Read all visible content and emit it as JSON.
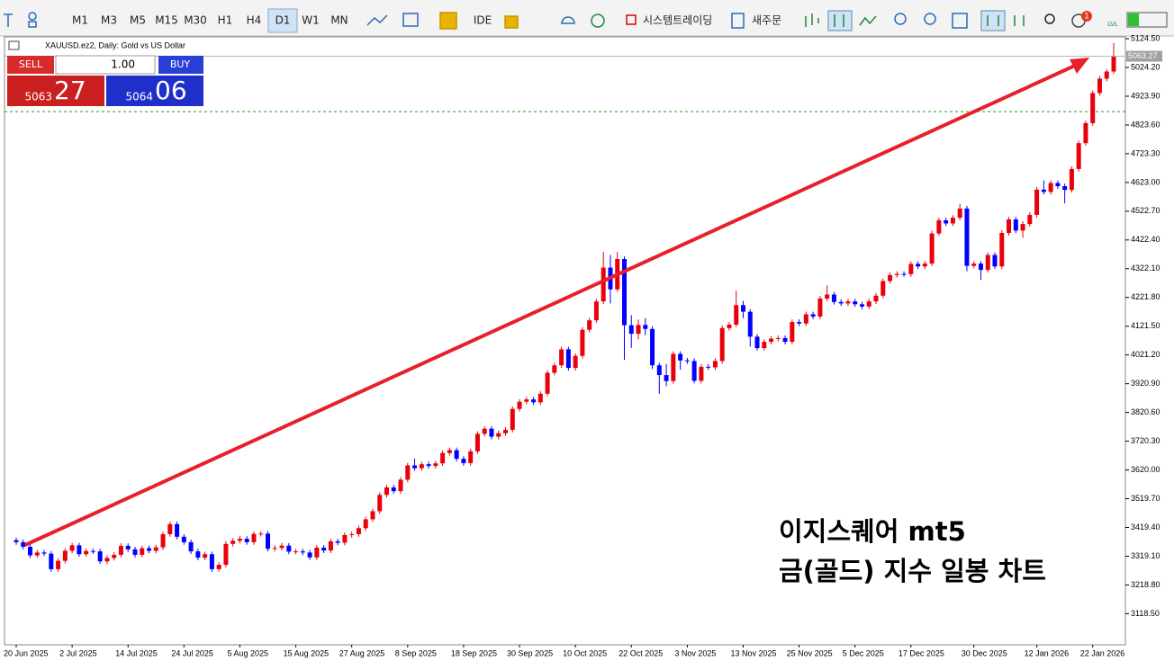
{
  "toolbar": {
    "timeframes": [
      "M1",
      "M3",
      "M5",
      "M15",
      "M30",
      "H1",
      "H4",
      "D1",
      "W1",
      "MN"
    ],
    "ide": "IDE",
    "algo": "시스템트레이딩",
    "new_order": "새주문",
    "badge": "1",
    "lvl": "LVL"
  },
  "trade_panel": {
    "sell": "SELL",
    "buy": "BUY",
    "lot": "1.00",
    "sell_big": "5063",
    "sell_small": "27",
    "buy_big": "5064",
    "buy_small": "06"
  },
  "annotation": [
    "이지스퀘어 mt5",
    "금(골드) 지수 일봉 차트"
  ],
  "chart_data": {
    "type": "candlestick",
    "title": "XAUUSD.ez2, Daily: Gold vs US Dollar",
    "up_color": "#e8000b",
    "down_color": "#0000ff",
    "categories": [
      "20 Jun 2025",
      null,
      null,
      null,
      null,
      null,
      null,
      null,
      "2 Jul 2025",
      null,
      null,
      null,
      null,
      null,
      null,
      null,
      "14 Jul 2025",
      null,
      null,
      null,
      null,
      null,
      null,
      null,
      "24 Jul 2025",
      null,
      null,
      null,
      null,
      null,
      null,
      null,
      "5 Aug 2025",
      null,
      null,
      null,
      null,
      null,
      null,
      null,
      "15 Aug 2025",
      null,
      null,
      null,
      null,
      null,
      null,
      null,
      "27 Aug 2025",
      null,
      null,
      null,
      null,
      null,
      null,
      null,
      "8 Sep 2025",
      null,
      null,
      null,
      null,
      null,
      null,
      null,
      "18 Sep 2025",
      null,
      null,
      null,
      null,
      null,
      null,
      null,
      "30 Sep 2025",
      null,
      null,
      null,
      null,
      null,
      null,
      null,
      "10 Oct 2025",
      null,
      null,
      null,
      null,
      null,
      null,
      null,
      "22 Oct 2025",
      null,
      null,
      null,
      null,
      null,
      null,
      null,
      "3 Nov 2025",
      null,
      null,
      null,
      null,
      null,
      null,
      null,
      "13 Nov 2025",
      null,
      null,
      null,
      null,
      null,
      null,
      null,
      "25 Nov 2025",
      null,
      null,
      null,
      null,
      null,
      null,
      null,
      "5 Dec 2025",
      null,
      null,
      null,
      null,
      null,
      null,
      null,
      "17 Dec 2025",
      null,
      null,
      null,
      null,
      null,
      null,
      null,
      null,
      "30 Dec 2025",
      null,
      null,
      null,
      null,
      null,
      null,
      null,
      null,
      "12 Jan 2026",
      null,
      null,
      null,
      null,
      null,
      null,
      null,
      "22 Jan 2026",
      null,
      null,
      null
    ],
    "open": [
      3375,
      3368,
      3352,
      3322,
      3332,
      3328,
      3274,
      3303,
      3338,
      3357,
      3326,
      3337,
      3336,
      3301,
      3313,
      3324,
      3355,
      3343,
      3324,
      3347,
      3338,
      3350,
      3396,
      3431,
      3387,
      3368,
      3336,
      3314,
      3326,
      3274,
      3289,
      3362,
      3373,
      3380,
      3368,
      3397,
      3398,
      3345,
      3348,
      3356,
      3335,
      3336,
      3332,
      3315,
      3349,
      3339,
      3371,
      3366,
      3393,
      3396,
      3417,
      3448,
      3476,
      3533,
      3559,
      3546,
      3586,
      3636,
      3626,
      3640,
      3634,
      3643,
      3679,
      3689,
      3659,
      3644,
      3685,
      3746,
      3764,
      3736,
      3748,
      3760,
      3833,
      3858,
      3866,
      3856,
      3886,
      3959,
      3985,
      4041,
      3976,
      4018,
      4109,
      4142,
      4208,
      4326,
      4250,
      4356,
      4125,
      4095,
      4126,
      4112,
      3985,
      3951,
      3930,
      4025,
      4002,
      4000,
      3931,
      3980,
      3978,
      4000,
      4115,
      4127,
      4195,
      4172,
      4085,
      4045,
      4067,
      4078,
      4080,
      4067,
      4136,
      4131,
      4163,
      4155,
      4218,
      4232,
      4206,
      4201,
      4208,
      4198,
      4190,
      4208,
      4228,
      4279,
      4300,
      4304,
      4303,
      4339,
      4330,
      4340,
      4445,
      4491,
      4480,
      4500,
      4532,
      4332,
      4340,
      4318,
      4370,
      4330,
      4447,
      4494,
      4455,
      4478,
      4510,
      4598,
      4590,
      4621,
      4610,
      4597,
      4670,
      4760,
      4830,
      4935,
      4985,
      5010
    ],
    "high": [
      3384,
      3377,
      3361,
      3341,
      3341,
      3337,
      3312,
      3347,
      3366,
      3366,
      3346,
      3346,
      3345,
      3322,
      3333,
      3364,
      3364,
      3352,
      3356,
      3356,
      3359,
      3405,
      3440,
      3440,
      3396,
      3377,
      3345,
      3335,
      3335,
      3298,
      3371,
      3382,
      3389,
      3389,
      3406,
      3407,
      3407,
      3357,
      3365,
      3365,
      3345,
      3345,
      3341,
      3358,
      3358,
      3380,
      3380,
      3402,
      3405,
      3426,
      3457,
      3485,
      3542,
      3568,
      3568,
      3595,
      3645,
      3660,
      3649,
      3649,
      3652,
      3688,
      3698,
      3698,
      3668,
      3694,
      3755,
      3773,
      3773,
      3757,
      3769,
      3842,
      3867,
      3875,
      3875,
      3895,
      3968,
      3994,
      4050,
      4050,
      4027,
      4118,
      4151,
      4217,
      4381,
      4370,
      4381,
      4365,
      4160,
      4145,
      4150,
      4121,
      3994,
      3990,
      4034,
      4034,
      4011,
      4009,
      3989,
      3989,
      4009,
      4124,
      4136,
      4245,
      4210,
      4181,
      4094,
      4076,
      4087,
      4089,
      4089,
      4145,
      4145,
      4172,
      4172,
      4227,
      4264,
      4241,
      4215,
      4217,
      4217,
      4207,
      4217,
      4237,
      4288,
      4309,
      4313,
      4313,
      4348,
      4348,
      4349,
      4454,
      4500,
      4500,
      4509,
      4549,
      4541,
      4349,
      4349,
      4379,
      4379,
      4456,
      4503,
      4503,
      4487,
      4519,
      4607,
      4630,
      4630,
      4630,
      4619,
      4679,
      4769,
      4839,
      4944,
      4994,
      5019,
      5110
    ],
    "low": [
      3359,
      3343,
      3313,
      3313,
      3319,
      3265,
      3265,
      3294,
      3329,
      3317,
      3317,
      3327,
      3292,
      3292,
      3304,
      3315,
      3334,
      3315,
      3315,
      3329,
      3329,
      3341,
      3387,
      3378,
      3359,
      3327,
      3305,
      3305,
      3265,
      3265,
      3280,
      3353,
      3364,
      3359,
      3359,
      3388,
      3336,
      3336,
      3339,
      3326,
      3326,
      3323,
      3306,
      3306,
      3330,
      3330,
      3357,
      3357,
      3384,
      3387,
      3408,
      3439,
      3467,
      3524,
      3537,
      3537,
      3577,
      3617,
      3617,
      3625,
      3625,
      3634,
      3670,
      3650,
      3635,
      3635,
      3676,
      3737,
      3727,
      3727,
      3739,
      3751,
      3824,
      3849,
      3847,
      3847,
      3877,
      3950,
      3976,
      3967,
      3967,
      4009,
      4100,
      4133,
      4199,
      4201,
      4241,
      4004,
      4046,
      4076,
      4090,
      3972,
      3886,
      3912,
      3921,
      3970,
      3990,
      3922,
      3922,
      3969,
      3969,
      3991,
      4106,
      4118,
      4150,
      4050,
      4036,
      4036,
      4058,
      4069,
      4058,
      4058,
      4122,
      4122,
      4146,
      4146,
      4209,
      4197,
      4192,
      4192,
      4189,
      4181,
      4181,
      4199,
      4219,
      4270,
      4291,
      4294,
      4294,
      4321,
      4321,
      4331,
      4436,
      4471,
      4471,
      4491,
      4313,
      4323,
      4283,
      4309,
      4321,
      4321,
      4438,
      4446,
      4430,
      4469,
      4501,
      4581,
      4581,
      4601,
      4550,
      4588,
      4661,
      4751,
      4821,
      4926,
      4976,
      5001
    ],
    "close": [
      3368,
      3352,
      3322,
      3332,
      3328,
      3274,
      3303,
      3338,
      3357,
      3326,
      3337,
      3336,
      3301,
      3313,
      3324,
      3355,
      3343,
      3324,
      3347,
      3338,
      3350,
      3396,
      3431,
      3387,
      3368,
      3336,
      3314,
      3326,
      3274,
      3289,
      3362,
      3373,
      3380,
      3368,
      3397,
      3398,
      3345,
      3348,
      3356,
      3335,
      3336,
      3332,
      3315,
      3349,
      3339,
      3371,
      3366,
      3393,
      3396,
      3417,
      3448,
      3476,
      3533,
      3559,
      3546,
      3586,
      3636,
      3626,
      3640,
      3634,
      3643,
      3679,
      3689,
      3659,
      3644,
      3685,
      3746,
      3764,
      3736,
      3748,
      3760,
      3833,
      3858,
      3866,
      3856,
      3886,
      3959,
      3985,
      4041,
      3976,
      4018,
      4109,
      4142,
      4208,
      4326,
      4250,
      4356,
      4125,
      4095,
      4126,
      4112,
      3985,
      3951,
      3930,
      4025,
      4002,
      4000,
      3931,
      3980,
      3978,
      4000,
      4115,
      4127,
      4195,
      4172,
      4085,
      4045,
      4067,
      4078,
      4080,
      4067,
      4136,
      4131,
      4163,
      4155,
      4218,
      4232,
      4206,
      4201,
      4208,
      4198,
      4190,
      4208,
      4228,
      4279,
      4300,
      4304,
      4303,
      4339,
      4330,
      4340,
      4445,
      4491,
      4480,
      4500,
      4532,
      4332,
      4340,
      4318,
      4370,
      4330,
      4447,
      4494,
      4455,
      4478,
      4510,
      4598,
      4590,
      4621,
      4610,
      4597,
      4670,
      4760,
      4830,
      4935,
      4985,
      5010,
      5063.27
    ],
    "ylim": [
      3010,
      5134
    ],
    "yticks": [
      {
        "value": 5124.5,
        "label": "5124.50"
      },
      {
        "value": 5024.2,
        "label": "5024.20"
      },
      {
        "value": 4923.9,
        "label": "4923.90"
      },
      {
        "value": 4823.6,
        "label": "4823.60"
      },
      {
        "value": 4723.3,
        "label": "4723.30"
      },
      {
        "value": 4623,
        "label": "4623.00"
      },
      {
        "value": 4522.7,
        "label": "4522.70"
      },
      {
        "value": 4422.4,
        "label": "4422.40"
      },
      {
        "value": 4322.1,
        "label": "4322.10"
      },
      {
        "value": 4221.8,
        "label": "4221.80"
      },
      {
        "value": 4121.5,
        "label": "4121.50"
      },
      {
        "value": 4021.2,
        "label": "4021.20"
      },
      {
        "value": 3920.9,
        "label": "3920.90"
      },
      {
        "value": 3820.6,
        "label": "3820.60"
      },
      {
        "value": 3720.3,
        "label": "3720.30"
      },
      {
        "value": 3620,
        "label": "3620.00"
      },
      {
        "value": 3519.7,
        "label": "3519.70"
      },
      {
        "value": 3419.4,
        "label": "3419.40"
      },
      {
        "value": 3319.1,
        "label": "3319.10"
      },
      {
        "value": 3218.8,
        "label": "3218.80"
      },
      {
        "value": 3118.5,
        "label": "3118.50"
      }
    ],
    "horizontal_line": 4870,
    "horizontal_line_color": "#1fa01f"
  }
}
